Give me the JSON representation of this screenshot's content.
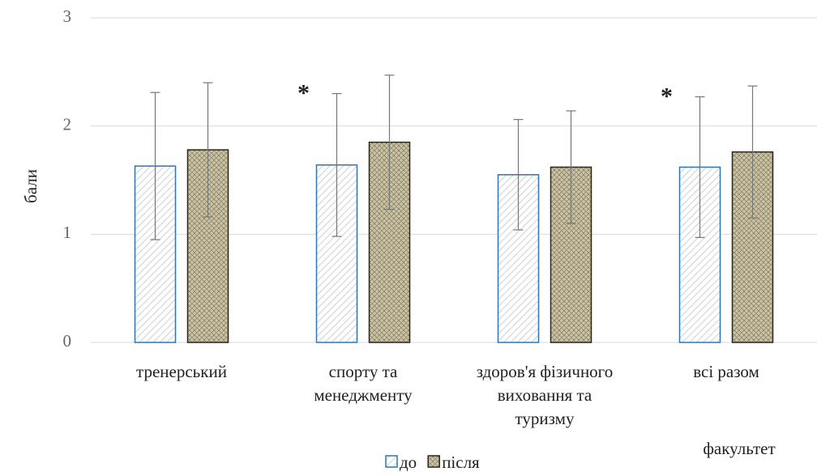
{
  "chart_data": {
    "type": "bar",
    "y_label": "бали",
    "x_label": "факультет",
    "categories": [
      "тренерський",
      "спорту та менеджменту",
      "здоров'я фізичного виховання та туризму",
      "всі разом"
    ],
    "series": [
      {
        "name": "до",
        "color": "#2e75b6",
        "values": [
          1.63,
          1.64,
          1.55,
          1.62
        ],
        "errors": [
          0.68,
          0.66,
          0.51,
          0.65
        ]
      },
      {
        "name": "після",
        "color": "#2b2418",
        "values": [
          1.78,
          1.85,
          1.62,
          1.76
        ],
        "errors": [
          0.62,
          0.62,
          0.52,
          0.61
        ]
      }
    ],
    "markers": [
      null,
      "*",
      null,
      "*"
    ],
    "ylim": [
      0,
      3
    ],
    "yticks": [
      0,
      1,
      2,
      3
    ],
    "grid": true,
    "legend": "bottom"
  }
}
